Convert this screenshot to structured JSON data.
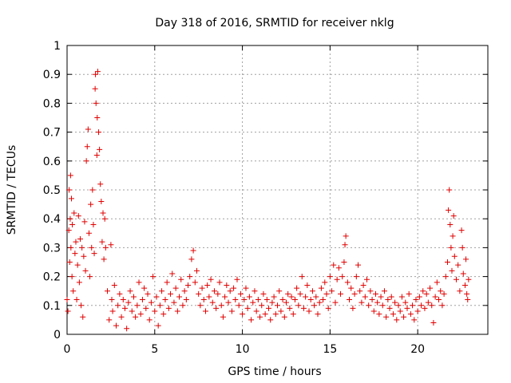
{
  "chart_data": {
    "type": "scatter",
    "title": "Day 318 of 2016, SRMTID for receiver nklg",
    "xlabel": "GPS time / hours",
    "ylabel": "SRMTID / TECUs",
    "xlim": [
      0,
      24
    ],
    "ylim": [
      0,
      1
    ],
    "xticks": [
      0,
      5,
      10,
      15,
      20
    ],
    "yticks": [
      0,
      0.1,
      0.2,
      0.3,
      0.4,
      0.5,
      0.6,
      0.7,
      0.8,
      0.9,
      1
    ],
    "xtick_labels": [
      "0",
      "5",
      "10",
      "15",
      "20"
    ],
    "ytick_labels": [
      "0",
      "0.1",
      "0.2",
      "0.3",
      "0.4",
      "0.5",
      "0.6",
      "0.7",
      "0.8",
      "0.9",
      "1"
    ],
    "grid": true,
    "marker": "plus",
    "series": [
      {
        "name": "SRMTID",
        "color": "#e00000",
        "points": [
          [
            0.0,
            0.12
          ],
          [
            0.05,
            0.08
          ],
          [
            0.1,
            0.36
          ],
          [
            0.12,
            0.5
          ],
          [
            0.15,
            0.25
          ],
          [
            0.18,
            0.4
          ],
          [
            0.2,
            0.55
          ],
          [
            0.22,
            0.3
          ],
          [
            0.25,
            0.47
          ],
          [
            0.28,
            0.2
          ],
          [
            0.3,
            0.38
          ],
          [
            0.35,
            0.15
          ],
          [
            0.4,
            0.42
          ],
          [
            0.45,
            0.28
          ],
          [
            0.5,
            0.32
          ],
          [
            0.55,
            0.12
          ],
          [
            0.6,
            0.24
          ],
          [
            0.65,
            0.41
          ],
          [
            0.7,
            0.18
          ],
          [
            0.75,
            0.33
          ],
          [
            0.8,
            0.1
          ],
          [
            0.85,
            0.3
          ],
          [
            0.9,
            0.06
          ],
          [
            0.95,
            0.27
          ],
          [
            1.0,
            0.39
          ],
          [
            1.05,
            0.22
          ],
          [
            1.1,
            0.6
          ],
          [
            1.15,
            0.65
          ],
          [
            1.2,
            0.71
          ],
          [
            1.25,
            0.35
          ],
          [
            1.3,
            0.2
          ],
          [
            1.35,
            0.45
          ],
          [
            1.4,
            0.3
          ],
          [
            1.45,
            0.5
          ],
          [
            1.5,
            0.38
          ],
          [
            1.55,
            0.28
          ],
          [
            1.6,
            0.85
          ],
          [
            1.62,
            0.9
          ],
          [
            1.65,
            0.8
          ],
          [
            1.7,
            0.62
          ],
          [
            1.72,
            0.75
          ],
          [
            1.75,
            0.91
          ],
          [
            1.8,
            0.7
          ],
          [
            1.85,
            0.64
          ],
          [
            1.9,
            0.52
          ],
          [
            1.95,
            0.46
          ],
          [
            2.0,
            0.32
          ],
          [
            2.05,
            0.42
          ],
          [
            2.1,
            0.26
          ],
          [
            2.15,
            0.4
          ],
          [
            2.2,
            0.3
          ],
          [
            2.3,
            0.15
          ],
          [
            2.4,
            0.05
          ],
          [
            2.5,
            0.31
          ],
          [
            2.55,
            0.12
          ],
          [
            2.6,
            0.08
          ],
          [
            2.7,
            0.17
          ],
          [
            2.8,
            0.03
          ],
          [
            2.9,
            0.1
          ],
          [
            3.0,
            0.14
          ],
          [
            3.1,
            0.06
          ],
          [
            3.2,
            0.12
          ],
          [
            3.3,
            0.09
          ],
          [
            3.4,
            0.02
          ],
          [
            3.5,
            0.11
          ],
          [
            3.6,
            0.15
          ],
          [
            3.7,
            0.08
          ],
          [
            3.8,
            0.13
          ],
          [
            3.9,
            0.06
          ],
          [
            4.0,
            0.1
          ],
          [
            4.1,
            0.18
          ],
          [
            4.2,
            0.07
          ],
          [
            4.3,
            0.12
          ],
          [
            4.4,
            0.16
          ],
          [
            4.5,
            0.09
          ],
          [
            4.6,
            0.14
          ],
          [
            4.7,
            0.05
          ],
          [
            4.8,
            0.11
          ],
          [
            4.9,
            0.2
          ],
          [
            5.0,
            0.08
          ],
          [
            5.1,
            0.13
          ],
          [
            5.2,
            0.03
          ],
          [
            5.3,
            0.1
          ],
          [
            5.4,
            0.15
          ],
          [
            5.5,
            0.07
          ],
          [
            5.6,
            0.12
          ],
          [
            5.7,
            0.18
          ],
          [
            5.8,
            0.09
          ],
          [
            5.9,
            0.14
          ],
          [
            6.0,
            0.21
          ],
          [
            6.1,
            0.11
          ],
          [
            6.2,
            0.16
          ],
          [
            6.3,
            0.08
          ],
          [
            6.4,
            0.13
          ],
          [
            6.5,
            0.19
          ],
          [
            6.6,
            0.1
          ],
          [
            6.7,
            0.15
          ],
          [
            6.8,
            0.12
          ],
          [
            6.9,
            0.17
          ],
          [
            7.0,
            0.2
          ],
          [
            7.1,
            0.26
          ],
          [
            7.2,
            0.29
          ],
          [
            7.3,
            0.18
          ],
          [
            7.4,
            0.22
          ],
          [
            7.5,
            0.14
          ],
          [
            7.6,
            0.1
          ],
          [
            7.7,
            0.16
          ],
          [
            7.8,
            0.12
          ],
          [
            7.9,
            0.08
          ],
          [
            8.0,
            0.17
          ],
          [
            8.1,
            0.13
          ],
          [
            8.2,
            0.19
          ],
          [
            8.3,
            0.11
          ],
          [
            8.4,
            0.15
          ],
          [
            8.5,
            0.09
          ],
          [
            8.6,
            0.14
          ],
          [
            8.7,
            0.18
          ],
          [
            8.8,
            0.1
          ],
          [
            8.9,
            0.06
          ],
          [
            9.0,
            0.13
          ],
          [
            9.1,
            0.17
          ],
          [
            9.2,
            0.11
          ],
          [
            9.3,
            0.15
          ],
          [
            9.4,
            0.08
          ],
          [
            9.5,
            0.16
          ],
          [
            9.6,
            0.12
          ],
          [
            9.7,
            0.19
          ],
          [
            9.8,
            0.1
          ],
          [
            9.9,
            0.14
          ],
          [
            10.0,
            0.07
          ],
          [
            10.1,
            0.12
          ],
          [
            10.2,
            0.16
          ],
          [
            10.3,
            0.09
          ],
          [
            10.4,
            0.13
          ],
          [
            10.5,
            0.05
          ],
          [
            10.6,
            0.11
          ],
          [
            10.7,
            0.15
          ],
          [
            10.8,
            0.08
          ],
          [
            10.9,
            0.12
          ],
          [
            11.0,
            0.06
          ],
          [
            11.1,
            0.1
          ],
          [
            11.2,
            0.14
          ],
          [
            11.3,
            0.07
          ],
          [
            11.4,
            0.12
          ],
          [
            11.5,
            0.09
          ],
          [
            11.6,
            0.05
          ],
          [
            11.7,
            0.11
          ],
          [
            11.8,
            0.13
          ],
          [
            11.9,
            0.07
          ],
          [
            12.0,
            0.1
          ],
          [
            12.1,
            0.15
          ],
          [
            12.2,
            0.08
          ],
          [
            12.3,
            0.12
          ],
          [
            12.4,
            0.06
          ],
          [
            12.5,
            0.11
          ],
          [
            12.6,
            0.14
          ],
          [
            12.7,
            0.09
          ],
          [
            12.8,
            0.13
          ],
          [
            12.9,
            0.07
          ],
          [
            13.0,
            0.12
          ],
          [
            13.1,
            0.16
          ],
          [
            13.2,
            0.1
          ],
          [
            13.3,
            0.14
          ],
          [
            13.4,
            0.2
          ],
          [
            13.5,
            0.09
          ],
          [
            13.6,
            0.13
          ],
          [
            13.7,
            0.17
          ],
          [
            13.8,
            0.08
          ],
          [
            13.9,
            0.12
          ],
          [
            14.0,
            0.15
          ],
          [
            14.1,
            0.1
          ],
          [
            14.2,
            0.13
          ],
          [
            14.3,
            0.07
          ],
          [
            14.4,
            0.11
          ],
          [
            14.5,
            0.16
          ],
          [
            14.6,
            0.12
          ],
          [
            14.7,
            0.18
          ],
          [
            14.8,
            0.14
          ],
          [
            14.9,
            0.09
          ],
          [
            15.0,
            0.2
          ],
          [
            15.1,
            0.15
          ],
          [
            15.2,
            0.24
          ],
          [
            15.3,
            0.11
          ],
          [
            15.4,
            0.19
          ],
          [
            15.5,
            0.23
          ],
          [
            15.6,
            0.14
          ],
          [
            15.7,
            0.2
          ],
          [
            15.8,
            0.25
          ],
          [
            15.85,
            0.31
          ],
          [
            15.9,
            0.34
          ],
          [
            16.0,
            0.18
          ],
          [
            16.1,
            0.12
          ],
          [
            16.2,
            0.16
          ],
          [
            16.3,
            0.09
          ],
          [
            16.4,
            0.14
          ],
          [
            16.5,
            0.2
          ],
          [
            16.6,
            0.24
          ],
          [
            16.7,
            0.15
          ],
          [
            16.8,
            0.11
          ],
          [
            16.9,
            0.17
          ],
          [
            17.0,
            0.13
          ],
          [
            17.1,
            0.19
          ],
          [
            17.2,
            0.1
          ],
          [
            17.3,
            0.15
          ],
          [
            17.4,
            0.12
          ],
          [
            17.5,
            0.08
          ],
          [
            17.6,
            0.14
          ],
          [
            17.7,
            0.11
          ],
          [
            17.8,
            0.07
          ],
          [
            17.9,
            0.13
          ],
          [
            18.0,
            0.1
          ],
          [
            18.1,
            0.15
          ],
          [
            18.2,
            0.06
          ],
          [
            18.3,
            0.12
          ],
          [
            18.4,
            0.09
          ],
          [
            18.5,
            0.13
          ],
          [
            18.6,
            0.07
          ],
          [
            18.7,
            0.11
          ],
          [
            18.8,
            0.05
          ],
          [
            18.9,
            0.1
          ],
          [
            19.0,
            0.08
          ],
          [
            19.1,
            0.13
          ],
          [
            19.2,
            0.06
          ],
          [
            19.3,
            0.11
          ],
          [
            19.4,
            0.09
          ],
          [
            19.5,
            0.14
          ],
          [
            19.6,
            0.07
          ],
          [
            19.7,
            0.1
          ],
          [
            19.8,
            0.05
          ],
          [
            19.9,
            0.12
          ],
          [
            20.0,
            0.08
          ],
          [
            20.1,
            0.13
          ],
          [
            20.2,
            0.1
          ],
          [
            20.3,
            0.15
          ],
          [
            20.4,
            0.09
          ],
          [
            20.5,
            0.14
          ],
          [
            20.6,
            0.11
          ],
          [
            20.7,
            0.16
          ],
          [
            20.8,
            0.1
          ],
          [
            20.9,
            0.04
          ],
          [
            21.0,
            0.13
          ],
          [
            21.1,
            0.18
          ],
          [
            21.2,
            0.12
          ],
          [
            21.3,
            0.15
          ],
          [
            21.4,
            0.1
          ],
          [
            21.5,
            0.14
          ],
          [
            21.6,
            0.2
          ],
          [
            21.7,
            0.25
          ],
          [
            21.75,
            0.43
          ],
          [
            21.8,
            0.5
          ],
          [
            21.85,
            0.38
          ],
          [
            21.9,
            0.3
          ],
          [
            21.95,
            0.22
          ],
          [
            22.0,
            0.34
          ],
          [
            22.05,
            0.41
          ],
          [
            22.1,
            0.27
          ],
          [
            22.2,
            0.19
          ],
          [
            22.3,
            0.24
          ],
          [
            22.4,
            0.15
          ],
          [
            22.5,
            0.36
          ],
          [
            22.55,
            0.3
          ],
          [
            22.6,
            0.21
          ],
          [
            22.7,
            0.17
          ],
          [
            22.75,
            0.26
          ],
          [
            22.8,
            0.14
          ],
          [
            22.85,
            0.12
          ],
          [
            22.9,
            0.19
          ]
        ]
      }
    ]
  }
}
